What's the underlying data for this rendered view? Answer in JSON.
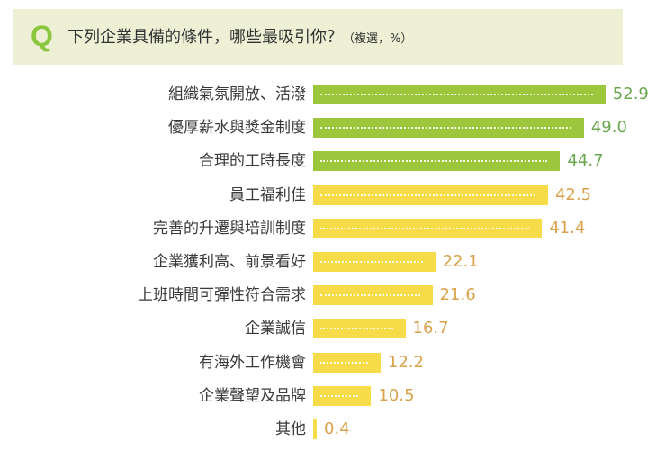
{
  "header": {
    "q_letter": "Q",
    "title": "下列企業具備的條件，哪些最吸引你？",
    "note": "（複選，%）"
  },
  "colors": {
    "header_bg": "#eef0d6",
    "q_letter": "#8cc63e",
    "top_bar": "#9cc63b",
    "top_value": "#6aa84f",
    "other_bar": "#f7dc4a",
    "other_value": "#d9a24a"
  },
  "chart_data": {
    "type": "bar",
    "orientation": "horizontal",
    "title": "下列企業具備的條件，哪些最吸引你？（複選，%）",
    "xlabel": "",
    "ylabel": "",
    "unit": "%",
    "categories": [
      "組織氣氛開放、活潑",
      "優厚薪水與獎金制度",
      "合理的工時長度",
      "員工福利佳",
      "完善的升遷與培訓制度",
      "企業獲利高、前景看好",
      "上班時間可彈性符合需求",
      "企業誠信",
      "有海外工作機會",
      "企業聲望及品牌",
      "其他"
    ],
    "values": [
      52.9,
      49.0,
      44.7,
      42.5,
      41.4,
      22.1,
      21.6,
      16.7,
      12.2,
      10.5,
      0.4
    ],
    "value_labels": [
      "52.9",
      "49.0",
      "44.7",
      "42.5",
      "41.4",
      "22.1",
      "21.6",
      "16.7",
      "12.2",
      "10.5",
      "0.4"
    ],
    "highlight_top_n": 3,
    "grid": false,
    "legend": null
  }
}
